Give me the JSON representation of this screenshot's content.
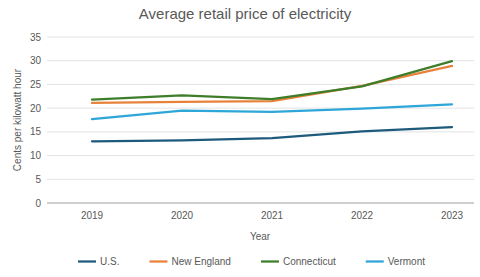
{
  "chart_data": {
    "type": "line",
    "title": "Average retail price of electricity",
    "x_label": "Year",
    "y_label": "Cents per kilowatt hour",
    "categories": [
      "2019",
      "2020",
      "2021",
      "2022",
      "2023"
    ],
    "series": [
      {
        "name": "U.S.",
        "color": "#1d5a7c",
        "values": [
          13.0,
          13.2,
          13.7,
          15.1,
          16.0
        ]
      },
      {
        "name": "New England",
        "color": "#e8823a",
        "values": [
          21.1,
          21.3,
          21.5,
          24.7,
          28.9
        ]
      },
      {
        "name": "Connecticut",
        "color": "#3e7d2a",
        "values": [
          21.8,
          22.7,
          21.9,
          24.6,
          29.9
        ]
      },
      {
        "name": "Vermont",
        "color": "#2ea6d8",
        "values": [
          17.7,
          19.5,
          19.2,
          19.9,
          20.8
        ]
      }
    ],
    "ylim": [
      0,
      35
    ],
    "yticks": [
      0,
      5,
      10,
      15,
      20,
      25,
      30,
      35
    ],
    "grid": true,
    "legend": "bottom"
  }
}
